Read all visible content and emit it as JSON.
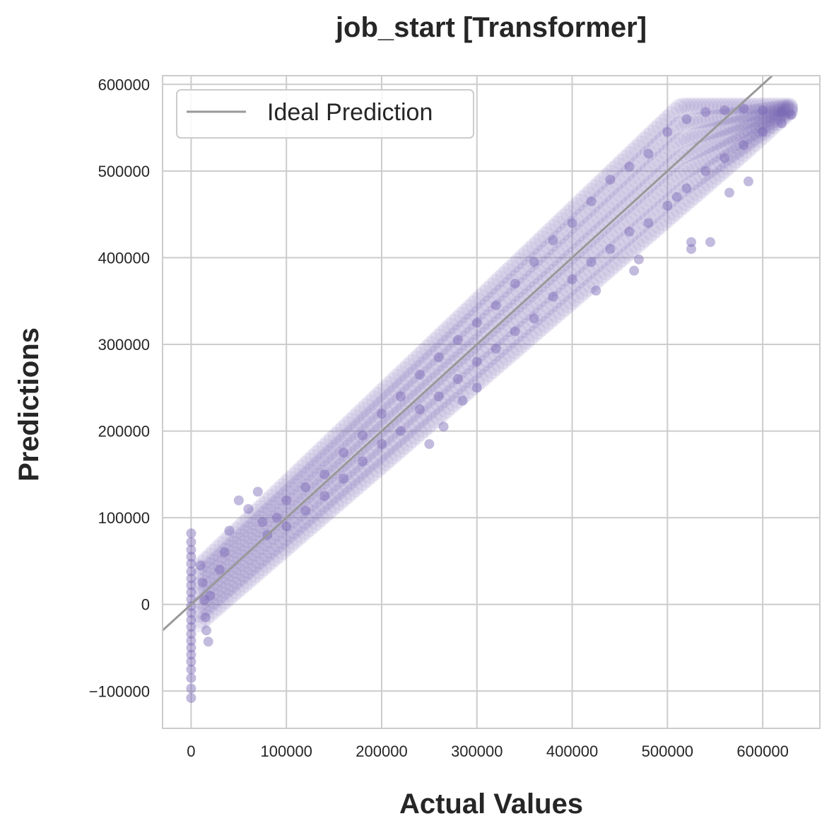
{
  "chart_data": {
    "type": "scatter",
    "title": "job_start [Transformer]",
    "xlabel": "Actual Values",
    "ylabel": "Predictions",
    "xlim": [
      -30000,
      660000
    ],
    "ylim": [
      -143000,
      610000
    ],
    "xticks": [
      0,
      100000,
      200000,
      300000,
      400000,
      500000,
      600000
    ],
    "xtick_labels": [
      "0",
      "100000",
      "200000",
      "300000",
      "400000",
      "500000",
      "600000"
    ],
    "yticks": [
      -100000,
      0,
      100000,
      200000,
      300000,
      400000,
      500000,
      600000
    ],
    "ytick_labels": [
      "−100000",
      "0",
      "100000",
      "200000",
      "300000",
      "400000",
      "500000",
      "600000"
    ],
    "grid": true,
    "legend": {
      "placement": "top-left",
      "entries": [
        "Ideal Prediction"
      ]
    },
    "series": [
      {
        "name": "Ideal Prediction",
        "type": "line",
        "x": [
          -30000,
          660000
        ],
        "y": [
          -30000,
          660000
        ],
        "color": "#999999"
      },
      {
        "type": "scatter",
        "color": "#7b68b5",
        "points": [
          [
            0,
            82000
          ],
          [
            0,
            72000
          ],
          [
            0,
            63000
          ],
          [
            0,
            55000
          ],
          [
            0,
            47000
          ],
          [
            0,
            38000
          ],
          [
            0,
            30000
          ],
          [
            0,
            22000
          ],
          [
            0,
            14000
          ],
          [
            0,
            6000
          ],
          [
            0,
            -2000
          ],
          [
            0,
            -10000
          ],
          [
            0,
            -18000
          ],
          [
            0,
            -26000
          ],
          [
            0,
            -34000
          ],
          [
            0,
            -42000
          ],
          [
            0,
            -50000
          ],
          [
            0,
            -58000
          ],
          [
            0,
            -66000
          ],
          [
            0,
            -75000
          ],
          [
            0,
            -85000
          ],
          [
            0,
            -97000
          ],
          [
            0,
            -108000
          ],
          [
            10000,
            45000
          ],
          [
            12000,
            25000
          ],
          [
            14000,
            5000
          ],
          [
            15000,
            -15000
          ],
          [
            16000,
            -30000
          ],
          [
            18000,
            -43000
          ],
          [
            20000,
            10000
          ],
          [
            30000,
            40000
          ],
          [
            35000,
            60000
          ],
          [
            40000,
            85000
          ],
          [
            50000,
            120000
          ],
          [
            60000,
            110000
          ],
          [
            70000,
            130000
          ],
          [
            75000,
            95000
          ],
          [
            80000,
            80000
          ],
          [
            90000,
            100000
          ],
          [
            100000,
            120000
          ],
          [
            100000,
            90000
          ],
          [
            120000,
            135000
          ],
          [
            120000,
            108000
          ],
          [
            140000,
            150000
          ],
          [
            140000,
            125000
          ],
          [
            160000,
            175000
          ],
          [
            160000,
            145000
          ],
          [
            180000,
            195000
          ],
          [
            180000,
            165000
          ],
          [
            200000,
            220000
          ],
          [
            200000,
            185000
          ],
          [
            220000,
            240000
          ],
          [
            220000,
            200000
          ],
          [
            240000,
            265000
          ],
          [
            240000,
            225000
          ],
          [
            250000,
            185000
          ],
          [
            260000,
            285000
          ],
          [
            260000,
            240000
          ],
          [
            265000,
            205000
          ],
          [
            280000,
            305000
          ],
          [
            280000,
            260000
          ],
          [
            285000,
            235000
          ],
          [
            300000,
            325000
          ],
          [
            300000,
            280000
          ],
          [
            300000,
            250000
          ],
          [
            320000,
            345000
          ],
          [
            320000,
            295000
          ],
          [
            340000,
            370000
          ],
          [
            340000,
            315000
          ],
          [
            360000,
            395000
          ],
          [
            360000,
            330000
          ],
          [
            380000,
            420000
          ],
          [
            380000,
            355000
          ],
          [
            400000,
            440000
          ],
          [
            400000,
            375000
          ],
          [
            420000,
            465000
          ],
          [
            420000,
            395000
          ],
          [
            425000,
            362000
          ],
          [
            440000,
            490000
          ],
          [
            440000,
            410000
          ],
          [
            460000,
            505000
          ],
          [
            460000,
            430000
          ],
          [
            465000,
            385000
          ],
          [
            470000,
            398000
          ],
          [
            480000,
            520000
          ],
          [
            480000,
            440000
          ],
          [
            500000,
            545000
          ],
          [
            500000,
            460000
          ],
          [
            510000,
            470000
          ],
          [
            520000,
            560000
          ],
          [
            520000,
            480000
          ],
          [
            525000,
            410000
          ],
          [
            525000,
            418000
          ],
          [
            540000,
            568000
          ],
          [
            540000,
            500000
          ],
          [
            545000,
            418000
          ],
          [
            560000,
            570000
          ],
          [
            560000,
            515000
          ],
          [
            565000,
            475000
          ],
          [
            580000,
            572000
          ],
          [
            580000,
            530000
          ],
          [
            585000,
            488000
          ],
          [
            600000,
            570000
          ],
          [
            600000,
            545000
          ],
          [
            620000,
            568000
          ],
          [
            620000,
            555000
          ],
          [
            630000,
            565000
          ]
        ]
      }
    ]
  }
}
